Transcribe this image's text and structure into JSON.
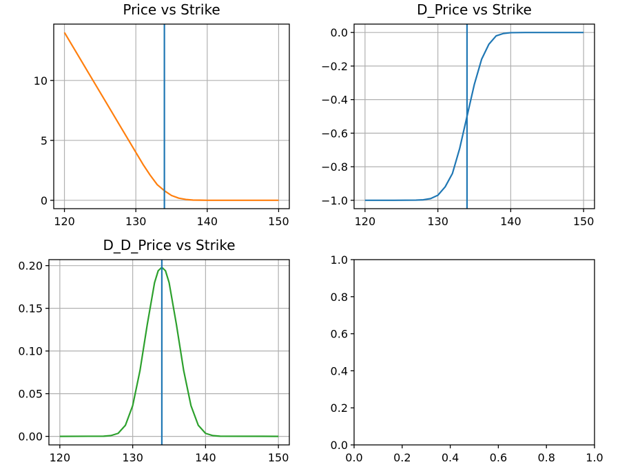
{
  "figure": {
    "background": "#ffffff"
  },
  "chart_data": [
    {
      "type": "line",
      "title": "Price vs Strike",
      "xlabel": "",
      "ylabel": "",
      "xlim": [
        118.5,
        151.5
      ],
      "ylim": [
        -0.7,
        14.7
      ],
      "xticks": [
        120,
        130,
        140,
        150
      ],
      "yticks": [
        0,
        5,
        10
      ],
      "grid": true,
      "vline": {
        "x": 134,
        "color": "#1f77b4"
      },
      "series": [
        {
          "color": "#ff7f0e",
          "x": [
            120,
            122,
            124,
            126,
            128,
            129,
            130,
            131,
            132,
            133,
            134,
            135,
            136,
            137,
            138,
            139,
            140,
            142,
            145,
            150
          ],
          "y": [
            14.0,
            12.0,
            10.0,
            8.0,
            6.0,
            5.0,
            4.0,
            3.0,
            2.1,
            1.3,
            0.8,
            0.4,
            0.18,
            0.07,
            0.02,
            0.01,
            0.0,
            0.0,
            0.0,
            0.0
          ]
        }
      ]
    },
    {
      "type": "line",
      "title": "D_Price vs Strike",
      "xlabel": "",
      "ylabel": "",
      "xlim": [
        118.5,
        151.5
      ],
      "ylim": [
        -1.05,
        0.05
      ],
      "xticks": [
        120,
        130,
        140,
        150
      ],
      "yticks": [
        "0.0",
        "−0.2",
        "−0.4",
        "−0.6",
        "−0.8",
        "−1.0"
      ],
      "ytick_values": [
        0.0,
        -0.2,
        -0.4,
        -0.6,
        -0.8,
        -1.0
      ],
      "grid": true,
      "vline": {
        "x": 134,
        "color": "#1f77b4"
      },
      "series": [
        {
          "color": "#1f77b4",
          "x": [
            120,
            124,
            127,
            128,
            129,
            130,
            131,
            132,
            133,
            134,
            135,
            136,
            137,
            138,
            139,
            140,
            142,
            145,
            150
          ],
          "y": [
            -1.0,
            -1.0,
            -0.999,
            -0.997,
            -0.99,
            -0.97,
            -0.92,
            -0.84,
            -0.69,
            -0.5,
            -0.31,
            -0.16,
            -0.07,
            -0.02,
            -0.006,
            -0.001,
            0.0,
            0.0,
            0.0
          ]
        }
      ]
    },
    {
      "type": "line",
      "title": "D_D_Price vs Strike",
      "xlabel": "",
      "ylabel": "",
      "xlim": [
        118.5,
        151.5
      ],
      "ylim": [
        -0.01,
        0.207
      ],
      "xticks": [
        120,
        130,
        140,
        150
      ],
      "yticks": [
        "0.00",
        "0.05",
        "0.10",
        "0.15",
        "0.20"
      ],
      "ytick_values": [
        0.0,
        0.05,
        0.1,
        0.15,
        0.2
      ],
      "grid": true,
      "vline": {
        "x": 134,
        "color": "#1f77b4"
      },
      "series": [
        {
          "color": "#2ca02c",
          "x": [
            120,
            126,
            127,
            128,
            129,
            130,
            131,
            132,
            133,
            133.5,
            134,
            134.5,
            135,
            136,
            137,
            138,
            139,
            140,
            141,
            142,
            150
          ],
          "y": [
            0.0,
            0.0002,
            0.0009,
            0.0035,
            0.013,
            0.036,
            0.077,
            0.131,
            0.18,
            0.194,
            0.198,
            0.194,
            0.18,
            0.131,
            0.077,
            0.036,
            0.013,
            0.0035,
            0.0009,
            0.0002,
            0.0
          ]
        }
      ]
    },
    {
      "type": "line",
      "title": "",
      "xlabel": "",
      "ylabel": "",
      "xlim": [
        0,
        1
      ],
      "ylim": [
        0,
        1
      ],
      "xticks": [
        "0.0",
        "0.2",
        "0.4",
        "0.6",
        "0.8",
        "1.0"
      ],
      "xtick_values": [
        0.0,
        0.2,
        0.4,
        0.6,
        0.8,
        1.0
      ],
      "yticks": [
        "0.0",
        "0.2",
        "0.4",
        "0.6",
        "0.8",
        "1.0"
      ],
      "ytick_values": [
        0.0,
        0.2,
        0.4,
        0.6,
        0.8,
        1.0
      ],
      "grid": false,
      "series": []
    }
  ]
}
